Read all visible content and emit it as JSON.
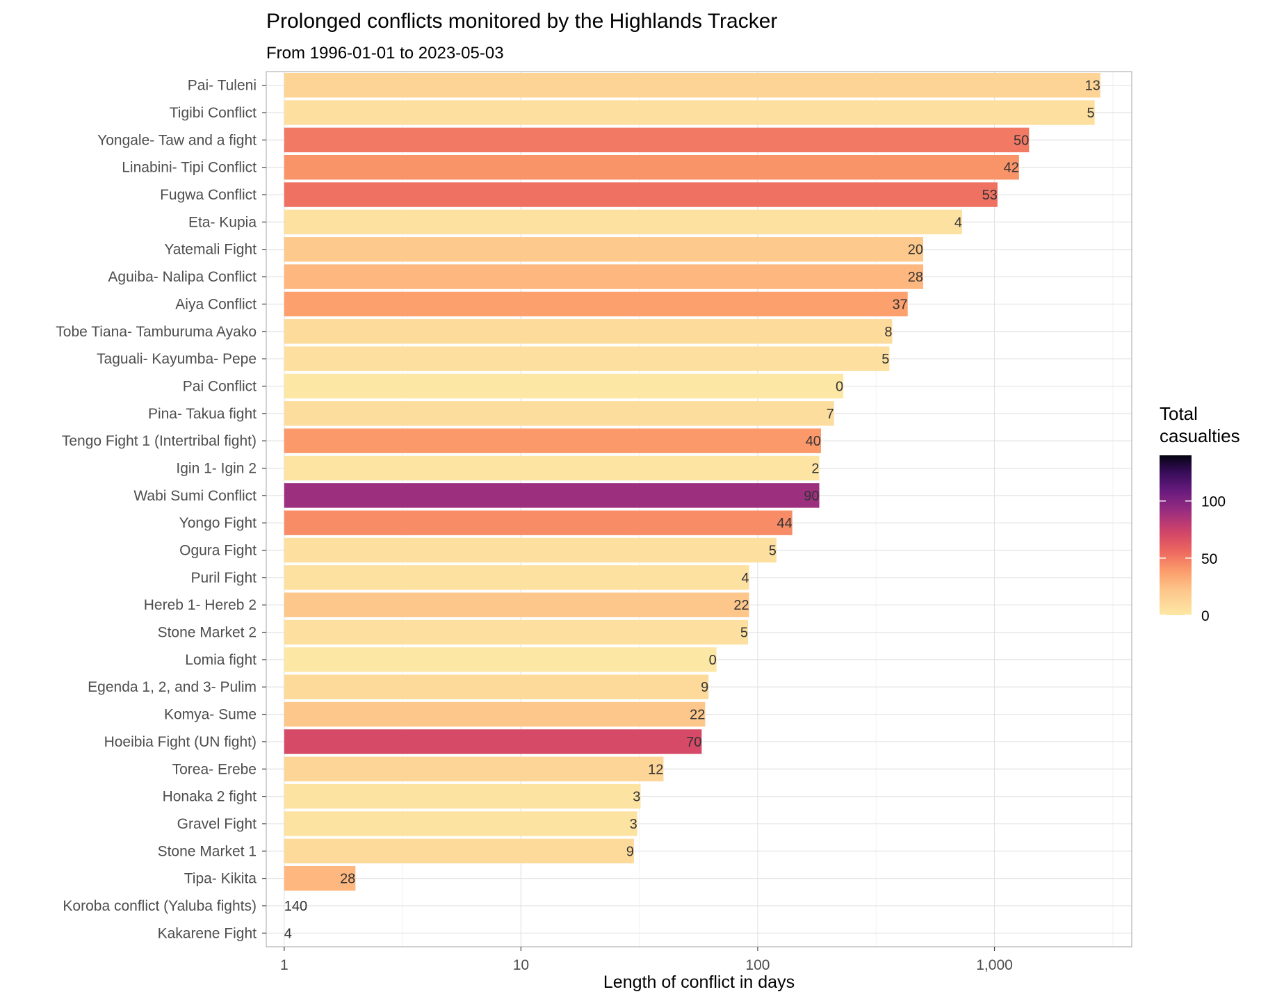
{
  "chart_data": {
    "type": "bar",
    "orientation": "horizontal",
    "title": "Prolonged conflicts monitored by the Highlands Tracker",
    "subtitle": "From 1996-01-01 to 2023-05-03",
    "xlabel": "Length of conflict in days",
    "ylabel": "",
    "x_scale": "log10",
    "xlim": [
      0.84,
      3800
    ],
    "x_ticks": [
      {
        "value": 1,
        "label": "1"
      },
      {
        "value": 10,
        "label": "10"
      },
      {
        "value": 100,
        "label": "100"
      },
      {
        "value": 1000,
        "label": "1,000"
      }
    ],
    "grid": true,
    "legend": {
      "title_lines": [
        "Total",
        "casualties"
      ],
      "placement": "right",
      "min": 0,
      "max": 140,
      "ticks": [
        {
          "value": 0,
          "label": "0"
        },
        {
          "value": 50,
          "label": "50"
        },
        {
          "value": 100,
          "label": "100"
        }
      ],
      "colorscale": "magma-reversed"
    },
    "bars": [
      {
        "name": "Pai- Tuleni",
        "days": 2800,
        "casualties": 13
      },
      {
        "name": "Tigibi Conflict",
        "days": 2650,
        "casualties": 5
      },
      {
        "name": "Yongale- Taw and a fight",
        "days": 1400,
        "casualties": 50
      },
      {
        "name": "Linabini- Tipi Conflict",
        "days": 1270,
        "casualties": 42
      },
      {
        "name": "Fugwa Conflict",
        "days": 1030,
        "casualties": 53
      },
      {
        "name": "Eta- Kupia",
        "days": 730,
        "casualties": 4
      },
      {
        "name": "Yatemali Fight",
        "days": 500,
        "casualties": 20
      },
      {
        "name": "Aguiba- Nalipa Conflict",
        "days": 500,
        "casualties": 28
      },
      {
        "name": "Aiya Conflict",
        "days": 430,
        "casualties": 37
      },
      {
        "name": "Tobe Tiana- Tamburuma Ayako",
        "days": 370,
        "casualties": 8
      },
      {
        "name": "Taguali- Kayumba-  Pepe",
        "days": 360,
        "casualties": 5
      },
      {
        "name": "Pai Conflict",
        "days": 230,
        "casualties": 0
      },
      {
        "name": "Pina- Takua fight",
        "days": 210,
        "casualties": 7
      },
      {
        "name": "Tengo Fight 1 (Intertribal fight)",
        "days": 185,
        "casualties": 40
      },
      {
        "name": "Igin 1- Igin 2",
        "days": 182,
        "casualties": 2
      },
      {
        "name": "Wabi Sumi Conflict",
        "days": 182,
        "casualties": 90
      },
      {
        "name": "Yongo Fight",
        "days": 140,
        "casualties": 44
      },
      {
        "name": "Ogura Fight",
        "days": 120,
        "casualties": 5
      },
      {
        "name": "Puril Fight",
        "days": 92,
        "casualties": 4
      },
      {
        "name": "Hereb 1- Hereb 2",
        "days": 92,
        "casualties": 22
      },
      {
        "name": "Stone Market 2",
        "days": 91,
        "casualties": 5
      },
      {
        "name": "Lomia fight",
        "days": 67,
        "casualties": 0
      },
      {
        "name": "Egenda 1, 2, and 3- Pulim",
        "days": 62,
        "casualties": 9
      },
      {
        "name": "Komya- Sume",
        "days": 60,
        "casualties": 22
      },
      {
        "name": "Hoeibia Fight (UN fight)",
        "days": 58,
        "casualties": 70
      },
      {
        "name": "Torea- Erebe",
        "days": 40,
        "casualties": 12
      },
      {
        "name": "Honaka 2 fight",
        "days": 32,
        "casualties": 3
      },
      {
        "name": "Gravel Fight",
        "days": 31,
        "casualties": 3
      },
      {
        "name": "Stone Market 1",
        "days": 30,
        "casualties": 9
      },
      {
        "name": "Tipa- Kikita",
        "days": 2,
        "casualties": 28
      },
      {
        "name": "Koroba conflict (Yaluba fights)",
        "days": 1,
        "casualties": 140
      },
      {
        "name": "Kakarene Fight",
        "days": 1,
        "casualties": 4
      }
    ]
  }
}
